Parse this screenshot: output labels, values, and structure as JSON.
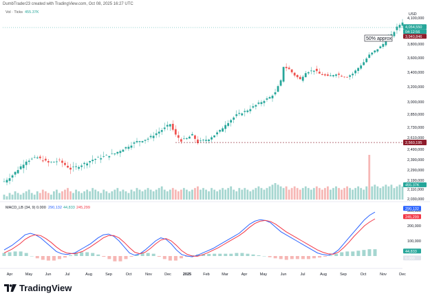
{
  "header": {
    "attribution": "DumbTrader23 created with TradingView.com, Oct 08, 2025 16:27 UTC"
  },
  "footer": {
    "brand": "TradingView"
  },
  "chart_data": [
    {
      "type": "candlestick",
      "currency": "USD",
      "legend": {
        "label": "Vol · Ticks",
        "value": "455.37K"
      },
      "x_labels": [
        "Apr",
        "May",
        "Jun",
        "Jul",
        "Aug",
        "Sep",
        "Oct",
        "Nov",
        "Dec",
        "2025",
        "Feb",
        "Mar",
        "Apr",
        "May",
        "Jun",
        "Jul",
        "Aug",
        "Sep",
        "Oct",
        "Nov",
        "Dec"
      ],
      "y_ticks": [
        4100000,
        3800000,
        3600000,
        3400000,
        3200000,
        3000000,
        2850000,
        2730000,
        2610000,
        2490000,
        2390000,
        2290000,
        2190000,
        2110000,
        2030000
      ],
      "y_tick_labels": [
        "4,100,000",
        "3,800,000",
        "3,600,000",
        "3,400,000",
        "3,200,000",
        "3,000,000",
        "2,850,000",
        "2,730,000",
        "2,610,000",
        "2,490,000",
        "2,390,000",
        "2,290,000",
        "2,190,000",
        "2,110,000",
        "2,030,000"
      ],
      "close_path": [
        [
          0,
          2180000
        ],
        [
          3,
          2240000
        ],
        [
          8,
          2380000
        ],
        [
          12,
          2410000
        ],
        [
          16,
          2360000
        ],
        [
          20,
          2380000
        ],
        [
          24,
          2300000
        ],
        [
          28,
          2340000
        ],
        [
          32,
          2390000
        ],
        [
          36,
          2420000
        ],
        [
          40,
          2450000
        ],
        [
          44,
          2510000
        ],
        [
          48,
          2570000
        ],
        [
          52,
          2600000
        ],
        [
          55,
          2660000
        ],
        [
          58,
          2720000
        ],
        [
          60,
          2760000
        ],
        [
          62,
          2640000
        ],
        [
          64,
          2580000
        ],
        [
          66,
          2600000
        ],
        [
          68,
          2640000
        ],
        [
          70,
          2560000
        ],
        [
          72,
          2580000
        ],
        [
          74,
          2600000
        ],
        [
          76,
          2640000
        ],
        [
          78,
          2690000
        ],
        [
          80,
          2760000
        ],
        [
          84,
          2840000
        ],
        [
          88,
          2900000
        ],
        [
          92,
          2980000
        ],
        [
          96,
          3060000
        ],
        [
          98,
          3120000
        ],
        [
          100,
          3280000
        ],
        [
          101,
          3480000
        ],
        [
          103,
          3440000
        ],
        [
          105,
          3360000
        ],
        [
          107,
          3300000
        ],
        [
          109,
          3400000
        ],
        [
          112,
          3430000
        ],
        [
          114,
          3380000
        ],
        [
          117,
          3340000
        ],
        [
          120,
          3380000
        ],
        [
          122,
          3350000
        ],
        [
          124,
          3340000
        ],
        [
          126,
          3380000
        ],
        [
          128,
          3460000
        ],
        [
          130,
          3540000
        ],
        [
          132,
          3640000
        ],
        [
          134,
          3700000
        ],
        [
          136,
          3760000
        ],
        [
          138,
          3840000
        ],
        [
          140,
          3900000
        ],
        [
          142,
          3990000
        ],
        [
          144,
          4054550
        ]
      ],
      "horizontal_levels": [
        {
          "value": 2560195,
          "label": "2,560,195",
          "color": "#8e1c2b",
          "style": "dashed"
        }
      ],
      "price_tags": [
        {
          "label": "4,054,550",
          "color": "#26a69a"
        },
        {
          "label": "04:12:56",
          "color": "#26a69a"
        },
        {
          "label": "3,940,846",
          "color": "#8e1c2b"
        }
      ],
      "annotations": [
        {
          "text": "50% approx"
        }
      ]
    },
    {
      "type": "bar",
      "role": "volume",
      "current_value_label": "455.37K",
      "values": [
        3,
        2,
        4,
        3,
        5,
        4,
        3,
        4,
        5,
        6,
        4,
        3,
        5,
        4,
        6,
        5,
        4,
        3,
        5,
        6,
        4,
        5,
        6,
        7,
        5,
        4,
        6,
        5,
        4,
        5,
        6,
        5,
        7,
        6,
        5,
        4,
        6,
        5,
        4,
        5,
        6,
        7,
        5,
        6,
        5,
        4,
        6,
        5,
        7,
        6,
        5,
        6,
        7,
        6,
        5,
        6,
        7,
        8,
        6,
        5,
        6,
        7,
        6,
        5,
        6,
        7,
        6,
        5,
        6,
        7,
        8,
        6,
        7,
        6,
        5,
        7,
        6,
        5,
        6,
        7,
        6,
        7,
        8,
        6,
        5,
        7,
        6,
        7,
        6,
        5,
        6,
        7,
        8,
        7,
        6,
        7,
        8,
        9,
        10,
        9,
        8,
        7,
        8,
        6,
        7,
        8,
        7,
        6,
        7,
        8,
        7,
        6,
        7,
        8,
        7,
        6,
        7,
        8,
        6,
        7,
        8,
        7,
        6,
        7,
        8,
        7,
        6,
        7,
        8,
        7,
        6,
        8,
        7,
        8,
        9,
        8,
        7,
        8,
        9,
        8,
        9,
        7,
        8,
        9,
        8
      ]
    },
    {
      "type": "line",
      "role": "indicator",
      "title": "MACD_LB (34, 9)",
      "legend": [
        {
          "name": "",
          "value": "0.000",
          "color": "#131722"
        },
        {
          "name": "",
          "value": "290,132",
          "color": "#2962ff"
        },
        {
          "name": "",
          "value": "44,833",
          "color": "#26a69a"
        },
        {
          "name": "",
          "value": "245,299",
          "color": "#f23645"
        }
      ],
      "y_ticks": [
        300000,
        200000,
        100000,
        0
      ],
      "y_tick_labels": [
        "300,000",
        "200,000",
        "100,000",
        "0.000"
      ],
      "price_tags": [
        {
          "label": "290,132",
          "color": "#2962ff"
        },
        {
          "label": "245,299",
          "color": "#f23645"
        },
        {
          "label": "44,833",
          "color": "#26a69a"
        },
        {
          "label": "0.000",
          "color": "#e0e3eb",
          "text_color": "#131722"
        }
      ],
      "macd": [
        [
          0,
          40000
        ],
        [
          3,
          70000
        ],
        [
          6,
          110000
        ],
        [
          8,
          140000
        ],
        [
          10,
          150000
        ],
        [
          12,
          140000
        ],
        [
          14,
          120000
        ],
        [
          16,
          90000
        ],
        [
          18,
          60000
        ],
        [
          20,
          30000
        ],
        [
          22,
          15000
        ],
        [
          24,
          10000
        ],
        [
          27,
          20000
        ],
        [
          30,
          50000
        ],
        [
          33,
          80000
        ],
        [
          36,
          120000
        ],
        [
          38,
          140000
        ],
        [
          40,
          145000
        ],
        [
          42,
          130000
        ],
        [
          44,
          100000
        ],
        [
          46,
          60000
        ],
        [
          48,
          20000
        ],
        [
          50,
          5000
        ],
        [
          52,
          15000
        ],
        [
          54,
          40000
        ],
        [
          56,
          70000
        ],
        [
          58,
          100000
        ],
        [
          60,
          120000
        ],
        [
          62,
          110000
        ],
        [
          64,
          80000
        ],
        [
          66,
          40000
        ],
        [
          68,
          10000
        ],
        [
          70,
          0
        ],
        [
          72,
          -5000
        ],
        [
          74,
          5000
        ],
        [
          76,
          20000
        ],
        [
          78,
          35000
        ],
        [
          80,
          50000
        ],
        [
          82,
          70000
        ],
        [
          84,
          90000
        ],
        [
          86,
          110000
        ],
        [
          88,
          130000
        ],
        [
          90,
          150000
        ],
        [
          92,
          180000
        ],
        [
          94,
          210000
        ],
        [
          96,
          230000
        ],
        [
          98,
          240000
        ],
        [
          100,
          235000
        ],
        [
          102,
          220000
        ],
        [
          104,
          190000
        ],
        [
          106,
          160000
        ],
        [
          108,
          140000
        ],
        [
          110,
          120000
        ],
        [
          112,
          100000
        ],
        [
          114,
          80000
        ],
        [
          116,
          60000
        ],
        [
          118,
          40000
        ],
        [
          120,
          20000
        ],
        [
          122,
          10000
        ],
        [
          124,
          5000
        ],
        [
          126,
          15000
        ],
        [
          128,
          40000
        ],
        [
          130,
          80000
        ],
        [
          132,
          120000
        ],
        [
          134,
          160000
        ],
        [
          136,
          200000
        ],
        [
          138,
          240000
        ],
        [
          140,
          270000
        ],
        [
          142,
          290132
        ]
      ],
      "signal": [
        [
          0,
          20000
        ],
        [
          3,
          45000
        ],
        [
          6,
          80000
        ],
        [
          8,
          110000
        ],
        [
          10,
          130000
        ],
        [
          12,
          140000
        ],
        [
          14,
          135000
        ],
        [
          16,
          115000
        ],
        [
          18,
          90000
        ],
        [
          20,
          60000
        ],
        [
          22,
          35000
        ],
        [
          24,
          20000
        ],
        [
          27,
          15000
        ],
        [
          30,
          30000
        ],
        [
          33,
          60000
        ],
        [
          36,
          95000
        ],
        [
          38,
          120000
        ],
        [
          40,
          135000
        ],
        [
          42,
          135000
        ],
        [
          44,
          120000
        ],
        [
          46,
          90000
        ],
        [
          48,
          55000
        ],
        [
          50,
          25000
        ],
        [
          52,
          15000
        ],
        [
          54,
          25000
        ],
        [
          56,
          50000
        ],
        [
          58,
          80000
        ],
        [
          60,
          105000
        ],
        [
          62,
          115000
        ],
        [
          64,
          100000
        ],
        [
          66,
          70000
        ],
        [
          68,
          35000
        ],
        [
          70,
          12000
        ],
        [
          72,
          0
        ],
        [
          74,
          -2000
        ],
        [
          76,
          8000
        ],
        [
          78,
          22000
        ],
        [
          80,
          38000
        ],
        [
          82,
          55000
        ],
        [
          84,
          75000
        ],
        [
          86,
          95000
        ],
        [
          88,
          115000
        ],
        [
          90,
          135000
        ],
        [
          92,
          160000
        ],
        [
          94,
          190000
        ],
        [
          96,
          215000
        ],
        [
          98,
          230000
        ],
        [
          100,
          235000
        ],
        [
          102,
          228000
        ],
        [
          104,
          210000
        ],
        [
          106,
          185000
        ],
        [
          108,
          160000
        ],
        [
          110,
          140000
        ],
        [
          112,
          120000
        ],
        [
          114,
          100000
        ],
        [
          116,
          80000
        ],
        [
          118,
          60000
        ],
        [
          120,
          40000
        ],
        [
          122,
          25000
        ],
        [
          124,
          15000
        ],
        [
          126,
          12000
        ],
        [
          128,
          25000
        ],
        [
          130,
          55000
        ],
        [
          132,
          90000
        ],
        [
          134,
          130000
        ],
        [
          136,
          165000
        ],
        [
          138,
          200000
        ],
        [
          140,
          225000
        ],
        [
          142,
          245299
        ]
      ],
      "histogram": [
        20000,
        25000,
        30000,
        30000,
        20000,
        0,
        -15000,
        -25000,
        -30000,
        -30000,
        -20000,
        -10000,
        5000,
        20000,
        25000,
        25000,
        20000,
        10000,
        -5000,
        -20000,
        -35000,
        -35000,
        -20000,
        -5000,
        10000,
        20000,
        20000,
        15000,
        -5000,
        -20000,
        -30000,
        -30000,
        -15000,
        -5000,
        5000,
        10000,
        12000,
        14000,
        15000,
        15000,
        15000,
        15000,
        20000,
        20000,
        15000,
        10000,
        5000,
        0,
        -8000,
        -15000,
        -20000,
        -25000,
        -20000,
        -20000,
        -20000,
        -20000,
        -15000,
        -10000,
        -5000,
        5000,
        15000,
        25000,
        30000,
        30000,
        35000,
        40000,
        45000,
        44833
      ]
    }
  ]
}
